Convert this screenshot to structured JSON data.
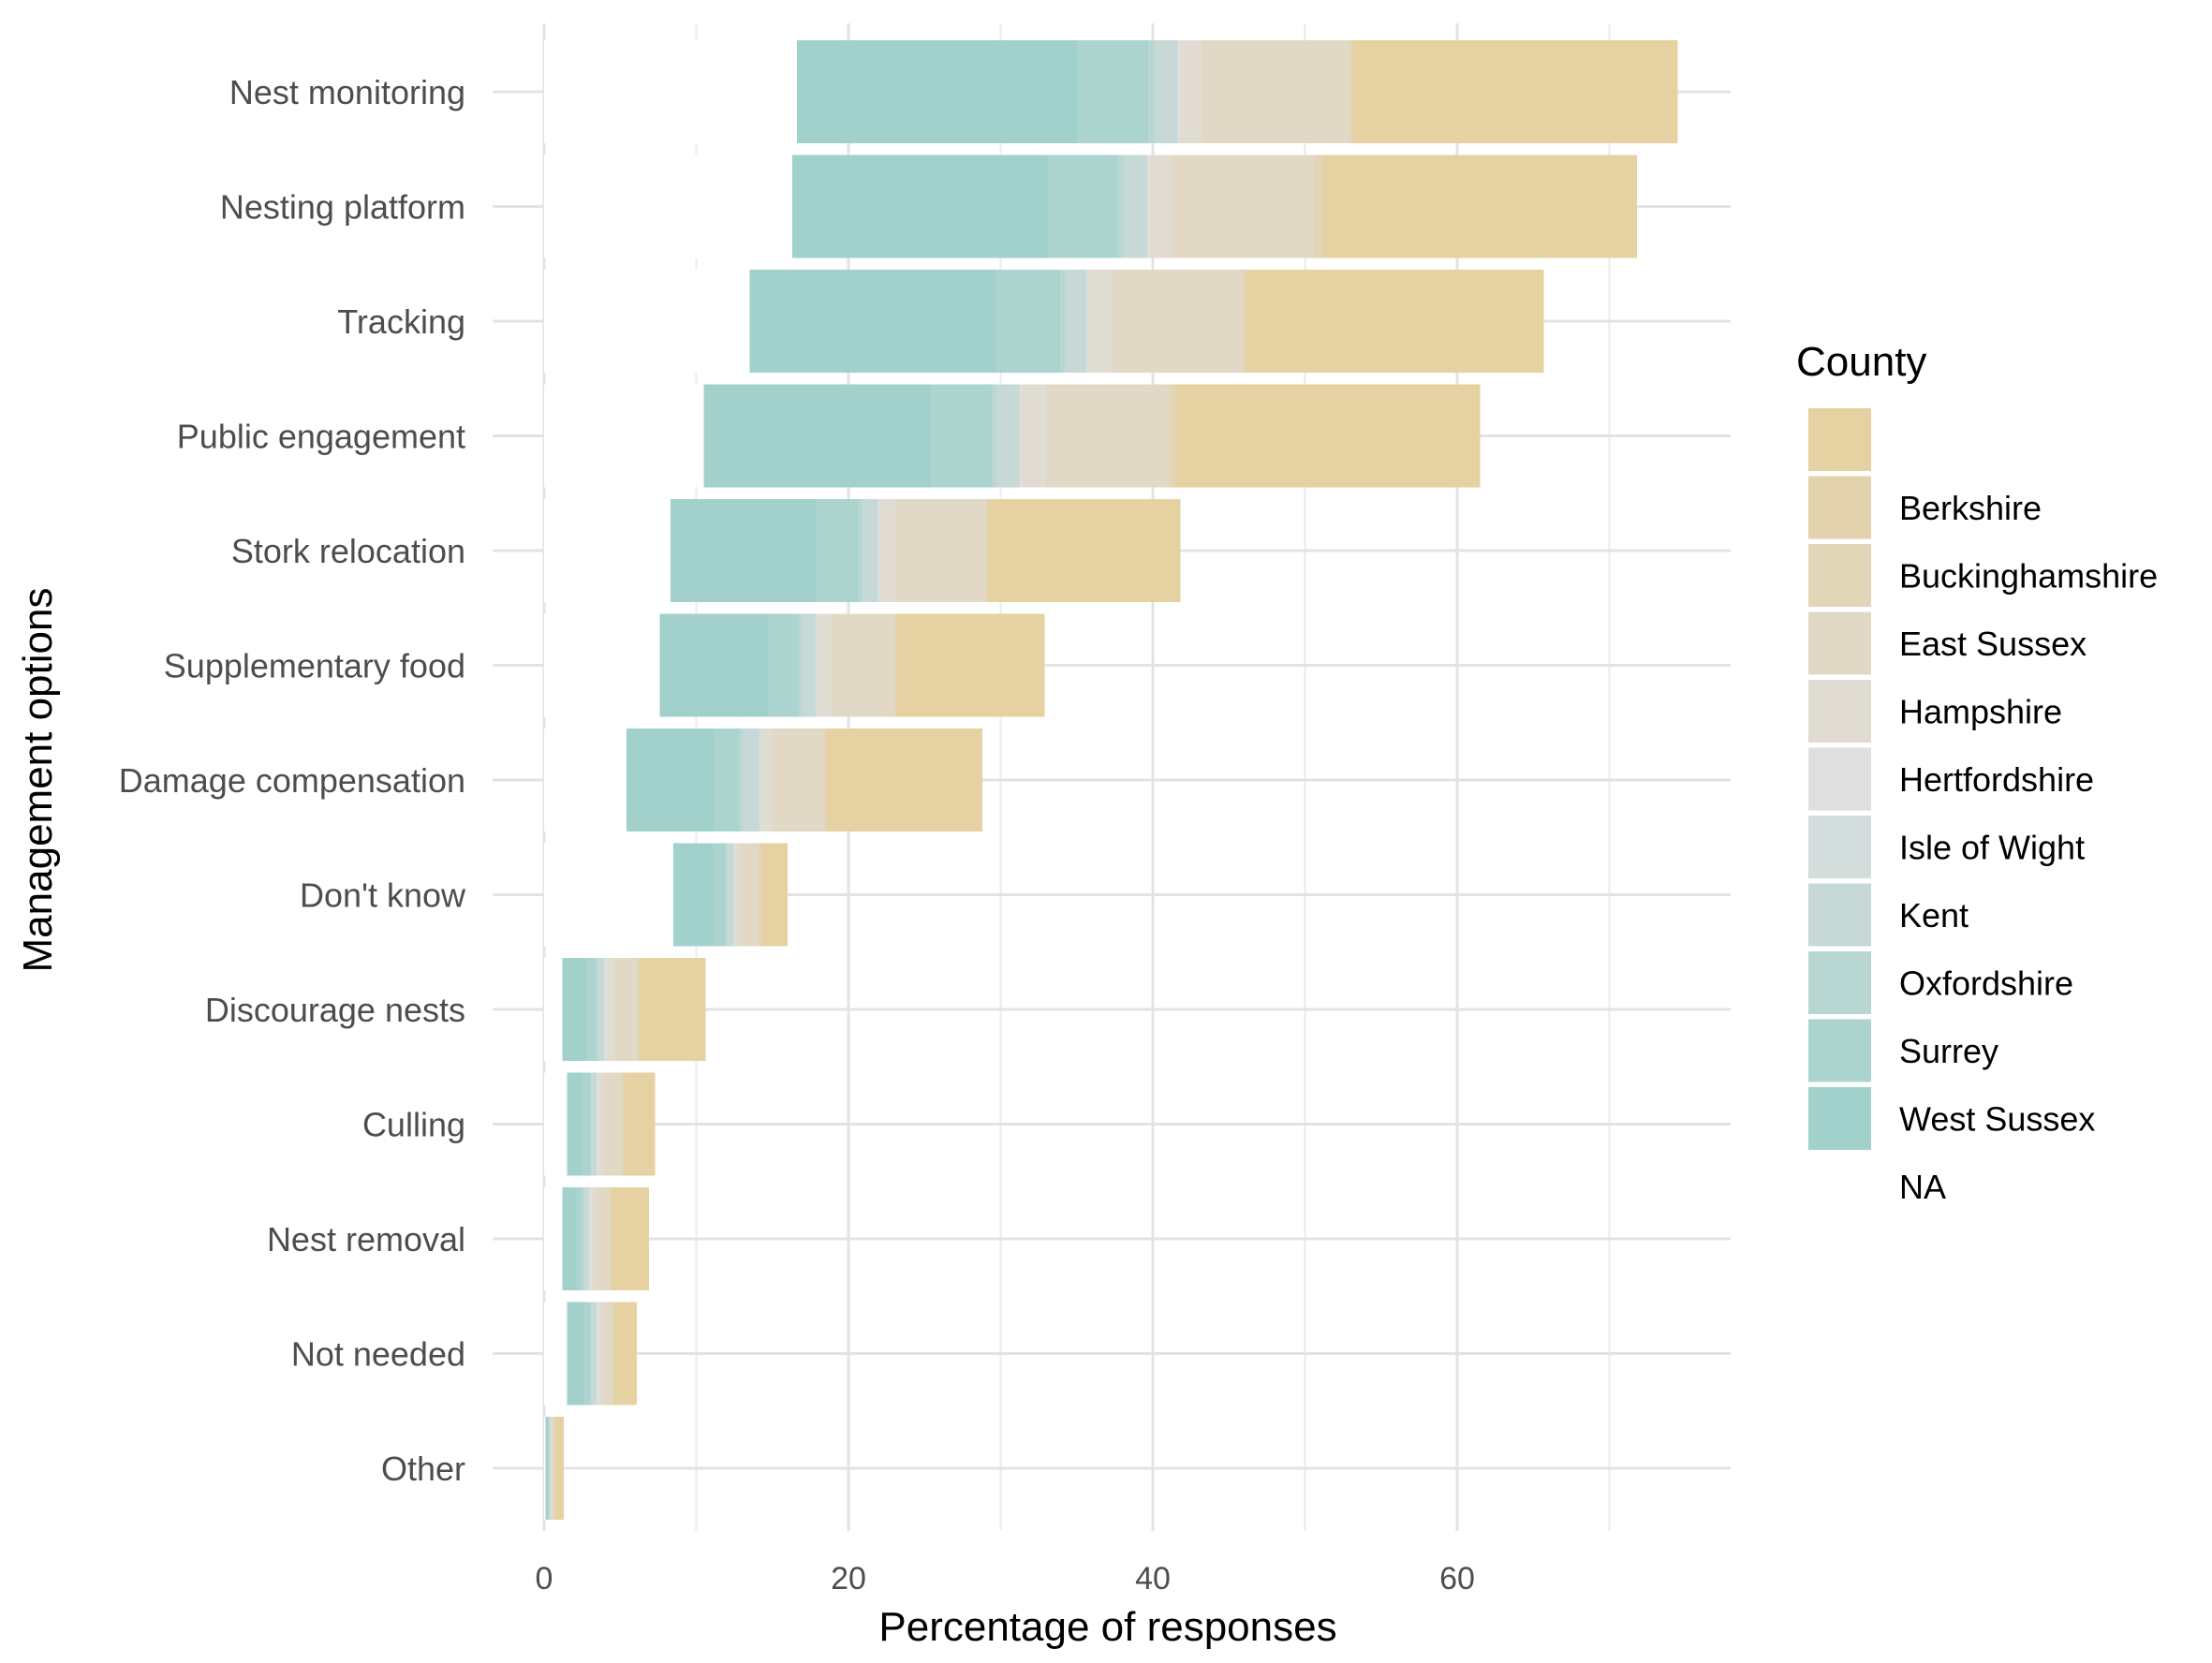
{
  "chart_data": {
    "type": "bar",
    "orientation": "horizontal",
    "stacked": true,
    "xlabel": "Percentage of responses",
    "ylabel": "Management options",
    "xlim": [
      -0.3,
      77.5
    ],
    "x_ticks": [
      0,
      20,
      40,
      60
    ],
    "x_tick_labels": [
      "0",
      "20",
      "40",
      "60"
    ],
    "grid": true,
    "legend": {
      "title": "County",
      "placement": "right",
      "entries": [
        "",
        "Berkshire",
        "Buckinghamshire",
        "East Sussex",
        "Hampshire",
        "Hertfordshire",
        "Isle of Wight",
        "Kent",
        "Oxfordshire",
        "Surrey",
        "West Sussex",
        "NA"
      ],
      "colors": [
        "#E6D1A2",
        "#E3D3AC",
        "#E2D6B9",
        "#E1D9C6",
        "#E0DCD2",
        "#DFDFDF",
        "#D3DDDC",
        "#C6D9D6",
        "#B8D7D2",
        "#ABD4CE",
        "#A1D1CA",
        "#FFFFFF"
      ]
    },
    "stack_order_left_to_right": [
      "NA",
      "West Sussex",
      "Surrey",
      "Oxfordshire",
      "Kent",
      "Isle of Wight",
      "Hertfordshire",
      "Hampshire",
      "East Sussex",
      "Buckinghamshire",
      "Berkshire",
      ""
    ],
    "categories": [
      "Nest monitoring",
      "Nesting platform",
      "Tracking",
      "Public engagement",
      "Stork relocation",
      "Supplementary food",
      "Damage compensation",
      "Don't know",
      "Discourage nests",
      "Culling",
      "Nest removal",
      "Not needed",
      "Other"
    ],
    "series": [
      {
        "name": "NA",
        "values": [
          16.6,
          16.3,
          13.5,
          10.5,
          8.3,
          7.6,
          5.4,
          8.5,
          1.2,
          1.5,
          1.2,
          1.5,
          0.1
        ]
      },
      {
        "name": "West Sussex",
        "values": [
          18.4,
          16.8,
          16.2,
          14.9,
          9.6,
          7.1,
          5.8,
          2.6,
          1.6,
          1.0,
          0.9,
          1.1,
          0.1
        ]
      },
      {
        "name": "Surrey",
        "values": [
          4.7,
          4.6,
          4.2,
          4.0,
          2.7,
          2.0,
          1.6,
          0.8,
          0.6,
          0.5,
          0.4,
          0.4,
          0.1
        ]
      },
      {
        "name": "Oxfordshire",
        "values": [
          0.4,
          0.4,
          0.3,
          0.3,
          0.3,
          0.2,
          0.2,
          0.1,
          0.1,
          0.1,
          0.1,
          0.1,
          0.0
        ]
      },
      {
        "name": "Kent",
        "values": [
          1.5,
          1.5,
          1.4,
          1.5,
          1.0,
          0.9,
          1.1,
          0.4,
          0.4,
          0.3,
          0.3,
          0.3,
          0.1
        ]
      },
      {
        "name": "Isle of Wight",
        "values": [
          0.1,
          0.1,
          0.1,
          0.1,
          0.1,
          0.1,
          0.1,
          0.1,
          0.1,
          0.1,
          0.1,
          0.1,
          0.0
        ]
      },
      {
        "name": "Hertfordshire",
        "values": [
          0.1,
          0.1,
          0.1,
          0.1,
          0.1,
          0.1,
          0.1,
          0.1,
          0.1,
          0.1,
          0.1,
          0.1,
          0.0
        ]
      },
      {
        "name": "Hampshire",
        "values": [
          1.4,
          1.5,
          1.5,
          1.6,
          1.0,
          0.9,
          0.7,
          0.3,
          0.5,
          0.3,
          0.3,
          0.3,
          0.1
        ]
      },
      {
        "name": "East Sussex",
        "values": [
          9.7,
          9.3,
          8.5,
          8.0,
          5.9,
          4.1,
          3.4,
          1.2,
          1.5,
          1.2,
          0.9,
          0.6,
          0.2
        ]
      },
      {
        "name": "Buckinghamshire",
        "values": [
          0.2,
          0.5,
          0.3,
          0.4,
          0.1,
          0.1,
          0.1,
          0.1,
          0.1,
          0.1,
          0.1,
          0.1,
          0.0
        ]
      },
      {
        "name": "Berkshire",
        "values": [
          0.1,
          0.1,
          0.1,
          0.1,
          0.1,
          0.1,
          0.1,
          0.1,
          0.1,
          0.1,
          0.1,
          0.1,
          0.0
        ]
      },
      {
        "name": "",
        "values": [
          21.3,
          20.6,
          19.5,
          20.0,
          12.6,
          9.7,
          10.2,
          1.7,
          4.3,
          2.0,
          2.4,
          1.4,
          0.6
        ]
      }
    ]
  }
}
